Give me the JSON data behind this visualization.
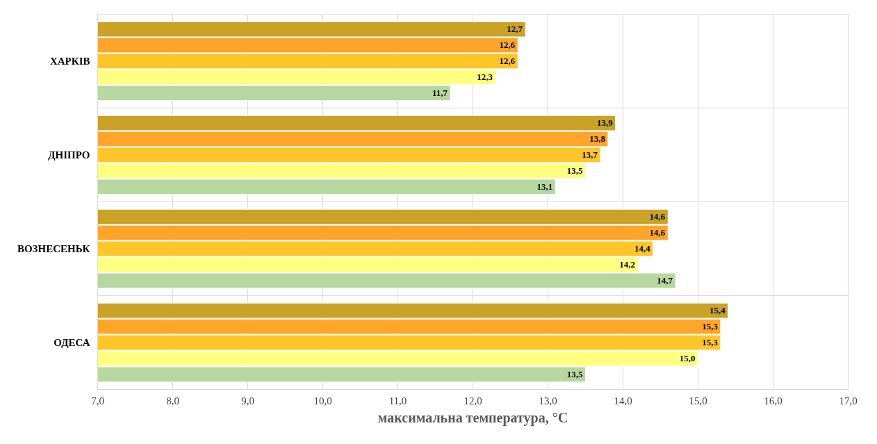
{
  "chart_data": {
    "type": "bar",
    "orientation": "horizontal",
    "xlabel": "максимальна температура, °C",
    "categories": [
      "ХАРКІВ",
      "ДНІПРО",
      "ВОЗНЕСЕНЬК",
      "ОДЕСА"
    ],
    "series": [
      {
        "color": "#c9a227",
        "values": [
          12.7,
          13.9,
          14.6,
          15.4
        ],
        "value_labels": [
          "12,7",
          "13,9",
          "14,6",
          "15,4"
        ]
      },
      {
        "color": "#ffa52a",
        "values": [
          12.6,
          13.8,
          14.6,
          15.3
        ],
        "value_labels": [
          "12,6",
          "13,8",
          "14,6",
          "15,3"
        ]
      },
      {
        "color": "#ffc62a",
        "values": [
          12.6,
          13.7,
          14.4,
          15.3
        ],
        "value_labels": [
          "12,6",
          "13,7",
          "14,4",
          "15,3"
        ]
      },
      {
        "color": "#ffff80",
        "values": [
          12.3,
          13.5,
          14.2,
          15.0
        ],
        "value_labels": [
          "12,3",
          "13,5",
          "14,2",
          "15,0"
        ]
      },
      {
        "color": "#b7d7a0",
        "values": [
          11.7,
          13.1,
          14.7,
          13.5
        ],
        "value_labels": [
          "11,7",
          "13,1",
          "14,7",
          "13,5"
        ]
      }
    ],
    "xlim": [
      7.0,
      17.0
    ],
    "xticks": [
      {
        "value": 7,
        "label": "7,0"
      },
      {
        "value": 8,
        "label": "8,0"
      },
      {
        "value": 9,
        "label": "9,0"
      },
      {
        "value": 10,
        "label": "10,0"
      },
      {
        "value": 11,
        "label": "11,0"
      },
      {
        "value": 12,
        "label": "12,0"
      },
      {
        "value": 13,
        "label": "13,0"
      },
      {
        "value": 14,
        "label": "14,0"
      },
      {
        "value": 15,
        "label": "15,0"
      },
      {
        "value": 16,
        "label": "16,0"
      },
      {
        "value": 17,
        "label": "17,0"
      }
    ],
    "grid": true
  }
}
